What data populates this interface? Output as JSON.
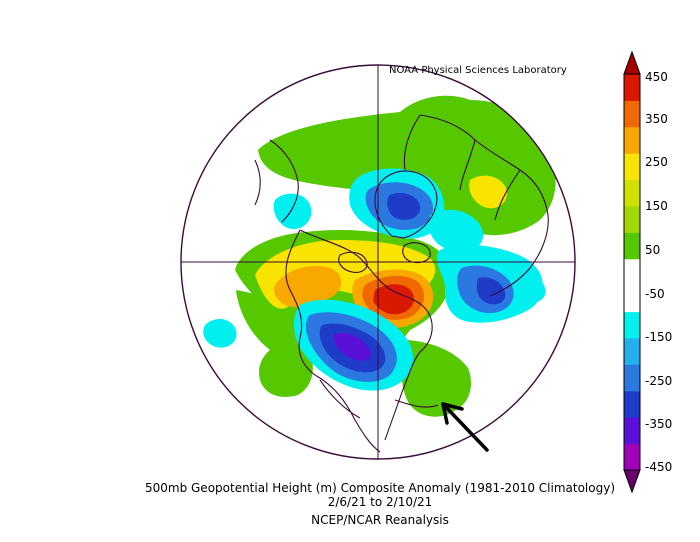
{
  "credit": "NOAA Physical Sciences Laboratory",
  "caption": {
    "title": "500mb Geopotential Height (m) Composite Anomaly (1981-2010 Climatology)",
    "dates": "2/6/21   to 2/10/21",
    "source": "NCEP/NCAR Reanalysis"
  },
  "colorbar": {
    "labels": [
      "450",
      "350",
      "250",
      "150",
      "50",
      "-50",
      "-150",
      "-250",
      "-350",
      "-450"
    ],
    "colors": [
      "#6a006a",
      "#a000b8",
      "#5a10d8",
      "#1e3cc8",
      "#2a78e0",
      "#24b0ec",
      "#00f0f0",
      "#ffffff",
      "#ffffff",
      "#55c800",
      "#a0d800",
      "#d0e000",
      "#f8e400",
      "#f8a800",
      "#f06800",
      "#d81800",
      "#a80000"
    ]
  },
  "colors": {
    "outline": "#3a0a3a",
    "positive_light": "#55c800",
    "positive_mid": "#f8e400",
    "positive_high": "#d81800",
    "negative_light": "#00f0f0",
    "negative_mid": "#2a78e0",
    "negative_deep": "#5a10d8"
  },
  "annotation": {
    "icon": "arrow-icon"
  }
}
